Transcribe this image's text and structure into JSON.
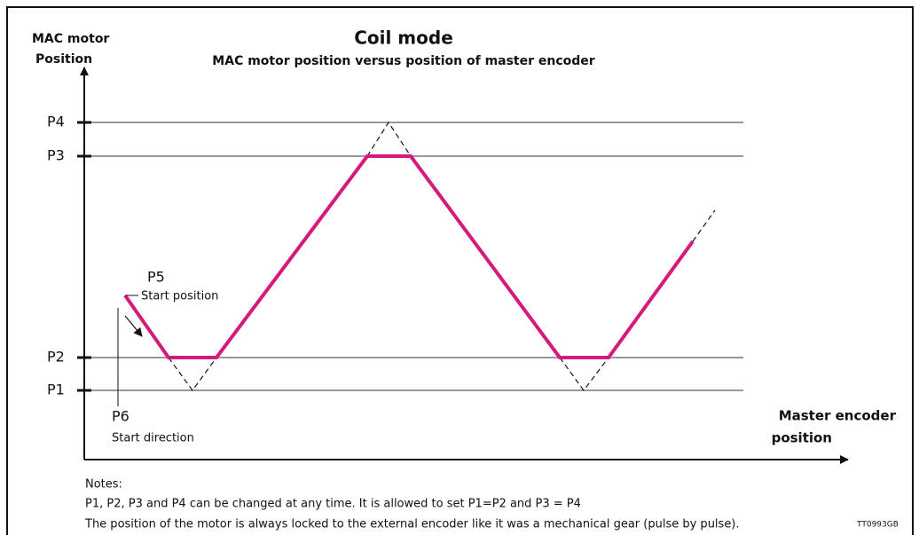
{
  "title": "Coil mode",
  "subtitle": "MAC motor position versus position of master encoder",
  "y_axis_label": [
    "MAC motor",
    "Position"
  ],
  "x_axis_label": [
    "Master encoder",
    "position"
  ],
  "levels": [
    "P4",
    "P3",
    "P2",
    "P1"
  ],
  "start_position": {
    "label": "P5",
    "text": "Start position"
  },
  "start_direction": {
    "label": "P6",
    "text": "Start direction"
  },
  "notes": {
    "heading": "Notes:",
    "lines": [
      "P1, P2, P3 and P4 can be changed at any time. It is allowed to set P1=P2 and P3 = P4",
      "The position of the motor is always locked to the external encoder like it was a mechanical gear (pulse by pulse)."
    ]
  },
  "reference": "TT0993GB"
}
